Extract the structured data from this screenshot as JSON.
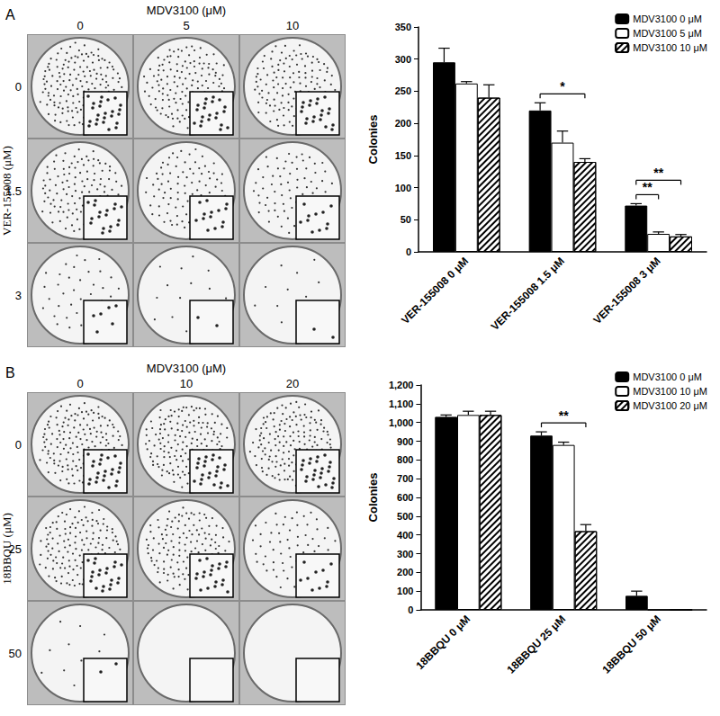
{
  "chart_data": [
    {
      "panel": "A",
      "type": "bar",
      "categories": [
        "VER-155008 0 μM",
        "VER-155008 1.5 μM",
        "VER-155008 3 μM"
      ],
      "y_label": "Colonies",
      "series": [
        {
          "name": "MDV3100 0 μM",
          "color": "#000000",
          "values": [
            295,
            220,
            72
          ],
          "errors": [
            22,
            12,
            3
          ]
        },
        {
          "name": "MDV3100 5 μM",
          "color": "#ffffff",
          "values": [
            262,
            170,
            28
          ],
          "errors": [
            3,
            18,
            3
          ]
        },
        {
          "name": "MDV3100 10 μM",
          "color": "#ffffff",
          "values": [
            240,
            140,
            24
          ],
          "errors": [
            20,
            5,
            3
          ]
        }
      ],
      "ylim": [
        0,
        350
      ],
      "yticks": [
        0,
        50,
        100,
        150,
        200,
        250,
        300,
        350
      ],
      "grid": false,
      "legend": "upper right",
      "annotations": [
        {
          "category": "VER-155008 1.5 μM",
          "between": [
            "MDV3100 0 μM",
            "MDV3100 10 μM"
          ],
          "label": "*"
        },
        {
          "category": "VER-155008 3 μM",
          "between": [
            "MDV3100 0 μM",
            "MDV3100 5 μM"
          ],
          "label": "**"
        },
        {
          "category": "VER-155008 3 μM",
          "between": [
            "MDV3100 0 μM",
            "MDV3100 10 μM"
          ],
          "label": "**"
        }
      ],
      "plates": {
        "column_title": "MDV3100 (μM)",
        "columns": [
          "0",
          "5",
          "10"
        ],
        "row_title": "VER-155008 (μM)",
        "rows": [
          "0",
          "1.5",
          "3"
        ]
      }
    },
    {
      "panel": "B",
      "type": "bar",
      "categories": [
        "18BBQU 0 μM",
        "18BBQU 25 μM",
        "18BBQU 50 μM"
      ],
      "y_label": "Colonies",
      "series": [
        {
          "name": "MDV3100 0 μM",
          "color": "#000000",
          "values": [
            1030,
            930,
            75
          ],
          "errors": [
            10,
            20,
            25
          ]
        },
        {
          "name": "MDV3100 10 μM",
          "color": "#ffffff",
          "values": [
            1040,
            880,
            0
          ],
          "errors": [
            20,
            15,
            0
          ]
        },
        {
          "name": "MDV3100 20 μM",
          "color": "#ffffff",
          "values": [
            1040,
            420,
            0
          ],
          "errors": [
            20,
            35,
            0
          ]
        }
      ],
      "ylim": [
        0,
        1200
      ],
      "yticks": [
        0,
        100,
        200,
        300,
        400,
        500,
        600,
        700,
        800,
        900,
        1000,
        1100,
        1200
      ],
      "grid": false,
      "legend": "upper right",
      "annotations": [
        {
          "category": "18BBQU 25 μM",
          "between": [
            "MDV3100 0 μM",
            "MDV3100 20 μM"
          ],
          "label": "**"
        }
      ],
      "plates": {
        "column_title": "MDV3100 (μM)",
        "columns": [
          "0",
          "10",
          "20"
        ],
        "row_title": "18BBQU (μM)",
        "rows": [
          "0",
          "25",
          "50"
        ]
      }
    }
  ]
}
